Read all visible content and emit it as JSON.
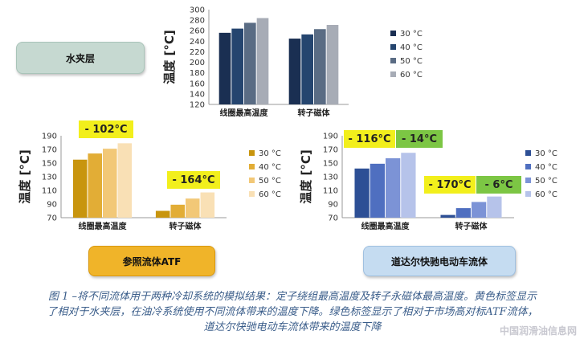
{
  "labels": {
    "water_jacket": "水夹层",
    "reference_fluid": "参照流体ATF",
    "daimler_fluid": "道达尔快驰电动车流体"
  },
  "badges": {
    "ref_winding": "- 102°C",
    "ref_rotor": "- 164°C",
    "daimler_winding": "- 116°C",
    "daimler_winding_green": "- 14°C",
    "daimler_rotor": "- 170°C",
    "daimler_rotor_green": "- 6°C"
  },
  "caption": {
    "line1": "图 1 –将不同流体用于两种冷却系统的模拟结果：定子绕组最高温度及转子永磁体最高温度。黄色标签显示",
    "line2": "了相对于水夹层，在油冷系统使用不同流体带来的温度下降。绿色标签显示了相对于市场高对标ATF流体，",
    "line3": "道达尔快驰电动车流体带来的温度下降"
  },
  "watermark": "中国润滑油信息网",
  "chart_data": [
    {
      "type": "bar",
      "ylabel": "温度 [°C]",
      "ylim": [
        120,
        300
      ],
      "yticks": [
        "120",
        "140",
        "160",
        "180",
        "200",
        "220",
        "240",
        "260",
        "280",
        "300"
      ],
      "categories": [
        "线圈最高温度",
        "转子磁体"
      ],
      "series": [
        {
          "name": "30 °C",
          "color": "#1a2f52",
          "values": [
            256,
            245
          ]
        },
        {
          "name": "40 °C",
          "color": "#25456f",
          "values": [
            264,
            253
          ]
        },
        {
          "name": "50 °C",
          "color": "#5a6c84",
          "values": [
            275,
            263
          ]
        },
        {
          "name": "60 °C",
          "color": "#a7acb6",
          "values": [
            284,
            271
          ]
        }
      ],
      "legend": "right"
    },
    {
      "type": "bar",
      "ylabel": "温度 [°C]",
      "ylim": [
        70,
        190
      ],
      "yticks": [
        "70",
        "90",
        "110",
        "130",
        "150",
        "170",
        "190"
      ],
      "categories": [
        "线圈最高温度",
        "转子磁体"
      ],
      "series": [
        {
          "name": "30 °C",
          "color": "#c8950e",
          "values": [
            155,
            80
          ]
        },
        {
          "name": "40 °C",
          "color": "#e2ad36",
          "values": [
            164,
            89
          ]
        },
        {
          "name": "50 °C",
          "color": "#f2c877",
          "values": [
            171,
            98
          ]
        },
        {
          "name": "60 °C",
          "color": "#f9e0b5",
          "values": [
            179,
            107
          ]
        }
      ],
      "legend": "right"
    },
    {
      "type": "bar",
      "ylabel": "温度 [°C]",
      "ylim": [
        70,
        190
      ],
      "yticks": [
        "70",
        "90",
        "110",
        "130",
        "150",
        "170",
        "190"
      ],
      "categories": [
        "线圈最高温度",
        "转子磁体"
      ],
      "series": [
        {
          "name": "30 °C",
          "color": "#2d4f95",
          "values": [
            142,
            74
          ]
        },
        {
          "name": "40 °C",
          "color": "#4f6fc0",
          "values": [
            149,
            84
          ]
        },
        {
          "name": "50 °C",
          "color": "#7c93d6",
          "values": [
            157,
            93
          ]
        },
        {
          "name": "60 °C",
          "color": "#b6c3ea",
          "values": [
            165,
            101
          ]
        }
      ],
      "legend": "right"
    }
  ]
}
